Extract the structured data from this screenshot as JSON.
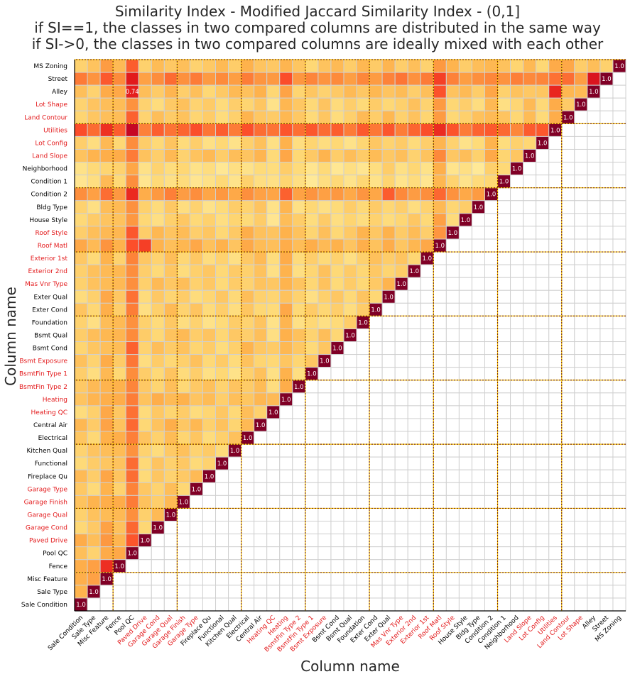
{
  "chart_data": {
    "type": "heatmap",
    "title_lines": [
      "Similarity Index - Modified Jaccard Similarity Index - (0,1]",
      "if SI==1, the classes in two compared columns are distributed in the same way",
      "if SI->0, the classes in two compared columns are ideally mixed with each other"
    ],
    "xlabel": "Column name",
    "ylabel": "Column name",
    "y_categories": [
      "MS Zoning",
      "Street",
      "Alley",
      "Lot Shape",
      "Land Contour",
      "Utilities",
      "Lot Config",
      "Land Slope",
      "Neighborhood",
      "Condition 1",
      "Condition 2",
      "Bldg Type",
      "House Style",
      "Roof Style",
      "Roof Matl",
      "Exterior 1st",
      "Exterior 2nd",
      "Mas Vnr Type",
      "Exter Qual",
      "Exter Cond",
      "Foundation",
      "Bsmt Qual",
      "Bsmt Cond",
      "Bsmt Exposure",
      "BsmtFin Type 1",
      "BsmtFin Type 2",
      "Heating",
      "Heating QC",
      "Central Air",
      "Electrical",
      "Kitchen Qual",
      "Functional",
      "Fireplace Qu",
      "Garage Type",
      "Garage Finish",
      "Garage Qual",
      "Garage Cond",
      "Paved Drive",
      "Pool QC",
      "Fence",
      "Misc Feature",
      "Sale Type",
      "Sale Condition"
    ],
    "x_categories": [
      "Sale Condition",
      "Sale Type",
      "Misc Feature",
      "Fence",
      "Pool QC",
      "Paved Drive",
      "Garage Cond",
      "Garage Qual",
      "Garage Finish",
      "Garage Type",
      "Fireplace Qu",
      "Functional",
      "Kitchen Qual",
      "Electrical",
      "Central Air",
      "Heating QC",
      "Heating",
      "BsmtFin Type 2",
      "BsmtFin Type 1",
      "Bsmt Exposure",
      "Bsmt Cond",
      "Bsmt Qual",
      "Foundation",
      "Exter Cond",
      "Exter Qual",
      "Mas Vnr Type",
      "Exterior 2nd",
      "Exterior 1st",
      "Roof Matl",
      "Roof Style",
      "House Style",
      "Bldg Type",
      "Condition 2",
      "Condition 1",
      "Neighborhood",
      "Land Slope",
      "Lot Config",
      "Utilities",
      "Land Contour",
      "Lot Shape",
      "Alley",
      "Street",
      "MS Zoning"
    ],
    "highlighted_columns": [
      "Lot Shape",
      "Land Contour",
      "Utilities",
      "Lot Config",
      "Land Slope",
      "Roof Style",
      "Roof Matl",
      "Exterior 1st",
      "Exterior 2nd",
      "Mas Vnr Type",
      "Bsmt Exposure",
      "BsmtFin Type 1",
      "BsmtFin Type 2",
      "Heating",
      "Heating QC",
      "Garage Type",
      "Garage Finish",
      "Garage Qual",
      "Garage Cond",
      "Paved Drive"
    ],
    "highlight_color": "#e31a1c",
    "default_label_color": "#000000",
    "group_boundaries_after_row": [
      5,
      10,
      15,
      20,
      25,
      30,
      35,
      40
    ],
    "row_base_values": [
      0.3,
      0.48,
      0.3,
      0.26,
      0.28,
      0.56,
      0.24,
      0.3,
      0.2,
      0.2,
      0.44,
      0.24,
      0.24,
      0.3,
      0.34,
      0.26,
      0.26,
      0.28,
      0.26,
      0.26,
      0.24,
      0.28,
      0.28,
      0.26,
      0.24,
      0.28,
      0.32,
      0.26,
      0.3,
      0.28,
      0.26,
      0.26,
      0.28,
      0.26,
      0.3,
      0.28,
      0.28,
      0.34,
      0.3,
      0.38,
      0.4,
      0.3,
      0.3
    ],
    "col_adjust": [
      0.02,
      0.02,
      0.1,
      0.06,
      0.26,
      0.0,
      0.02,
      0.04,
      0.02,
      0.02,
      0.0,
      0.0,
      0.0,
      0.04,
      0.04,
      -0.02,
      0.1,
      0.0,
      0.0,
      0.02,
      0.0,
      0.0,
      0.02,
      0.02,
      0.04,
      0.02,
      0.02,
      0.02,
      0.16,
      0.02,
      0.0,
      0.0,
      0.08,
      0.0,
      0.0,
      0.04,
      0.0,
      0.1,
      0.06,
      0.0,
      0.0,
      0.0,
      0.0
    ],
    "notable_values": [
      {
        "row": "Alley",
        "col": "Pool QC",
        "value": 0.74,
        "label": "0.74"
      },
      {
        "row": "Fence",
        "col": "Misc Feature",
        "value": 0.7
      },
      {
        "row": "Roof Matl",
        "col": "Paved Drive",
        "value": 0.66
      },
      {
        "row": "Street",
        "col": "Alley",
        "value": 0.78
      },
      {
        "row": "Alley",
        "col": "Utilities",
        "value": 0.72
      },
      {
        "row": "Alley",
        "col": "Roof Matl",
        "value": 0.62
      },
      {
        "row": "Street",
        "col": "Roof Matl",
        "value": 0.66
      },
      {
        "row": "Condition 2",
        "col": "Exter Qual",
        "value": 0.6
      }
    ],
    "diagonal_value": 1.0,
    "diagonal_label": "1.0",
    "vmin": 0.0,
    "vmax": 1.0,
    "colormap": "YlOrRd",
    "colors": {
      "cmap_stops": [
        "#ffffcc",
        "#ffeda0",
        "#fed976",
        "#feb24c",
        "#fd8d3c",
        "#fc4e2a",
        "#e31a1c",
        "#bd0026",
        "#800026"
      ],
      "diagonal": "#800026",
      "group_line_dark": "#7a2a00",
      "group_line_gold": "#ffcc00",
      "cell_border": "#d0d0d0",
      "axis": "#000000",
      "text": "#262626"
    },
    "grid": true,
    "legend": "none"
  }
}
